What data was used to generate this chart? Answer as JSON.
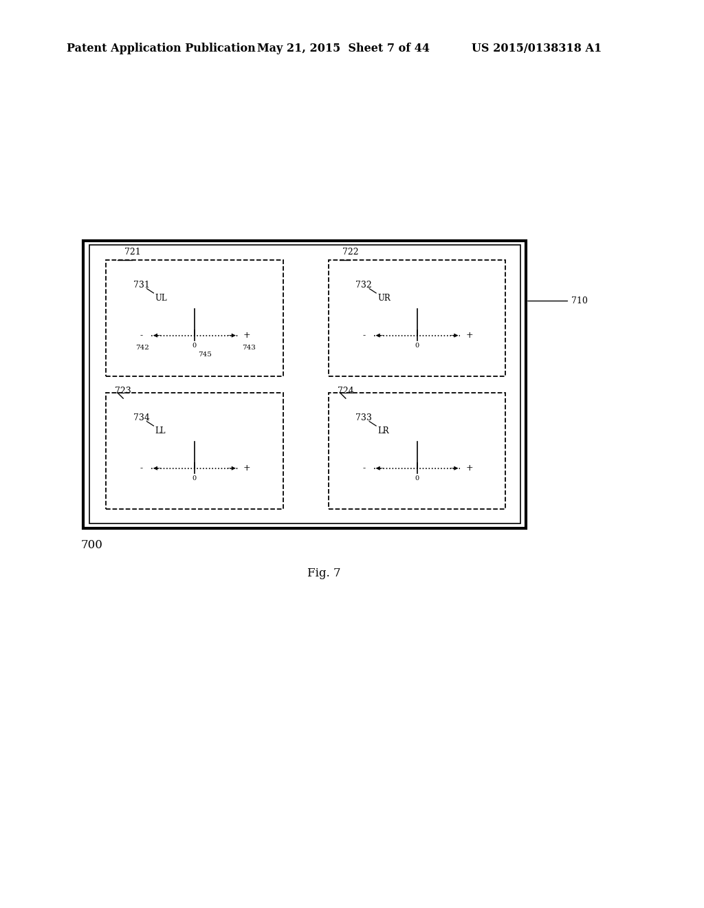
{
  "title_left": "Patent Application Publication",
  "title_mid": "May 21, 2015  Sheet 7 of 44",
  "title_right": "US 2015/0138318 A1",
  "fig_label": "Fig. 7",
  "fig_number": "700",
  "outer_box_label": "710",
  "background_color": "#ffffff",
  "font_size_header": 11.5,
  "font_size_labels": 9.5,
  "panels": [
    {
      "clbl": "721",
      "ilbl": "731",
      "itxt": "UL",
      "quad": "UL",
      "show_slider_labels": true,
      "s_left": "742",
      "s_right": "743",
      "s_center": "745"
    },
    {
      "clbl": "722",
      "ilbl": "732",
      "itxt": "UR",
      "quad": "UR",
      "show_slider_labels": false,
      "s_left": null,
      "s_right": null,
      "s_center": null
    },
    {
      "clbl": "723",
      "ilbl": "734",
      "itxt": "LL",
      "quad": "LL",
      "show_slider_labels": false,
      "s_left": null,
      "s_right": null,
      "s_center": null
    },
    {
      "clbl": "724",
      "ilbl": "733",
      "itxt": "LR",
      "quad": "LR",
      "show_slider_labels": false,
      "s_left": null,
      "s_right": null,
      "s_center": null
    }
  ]
}
